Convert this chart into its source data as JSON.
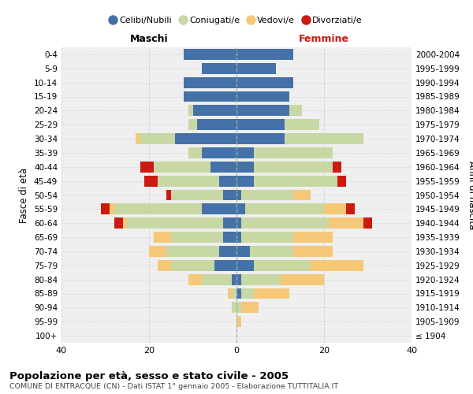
{
  "age_groups": [
    "100+",
    "95-99",
    "90-94",
    "85-89",
    "80-84",
    "75-79",
    "70-74",
    "65-69",
    "60-64",
    "55-59",
    "50-54",
    "45-49",
    "40-44",
    "35-39",
    "30-34",
    "25-29",
    "20-24",
    "15-19",
    "10-14",
    "5-9",
    "0-4"
  ],
  "birth_years": [
    "≤ 1904",
    "1905-1909",
    "1910-1914",
    "1915-1919",
    "1920-1924",
    "1925-1929",
    "1930-1934",
    "1935-1939",
    "1940-1944",
    "1945-1949",
    "1950-1954",
    "1955-1959",
    "1960-1964",
    "1965-1969",
    "1970-1974",
    "1975-1979",
    "1980-1984",
    "1985-1989",
    "1990-1994",
    "1995-1999",
    "2000-2004"
  ],
  "maschi_celibi": [
    0,
    0,
    0,
    0,
    1,
    5,
    4,
    3,
    3,
    8,
    3,
    4,
    6,
    8,
    14,
    9,
    10,
    12,
    12,
    8,
    12
  ],
  "maschi_coniugati": [
    0,
    0,
    1,
    1,
    7,
    10,
    12,
    12,
    22,
    20,
    12,
    14,
    13,
    3,
    8,
    2,
    1,
    0,
    0,
    0,
    0
  ],
  "maschi_vedovi": [
    0,
    0,
    0,
    1,
    3,
    3,
    4,
    4,
    1,
    1,
    0,
    0,
    0,
    0,
    1,
    0,
    0,
    0,
    0,
    0,
    0
  ],
  "maschi_divorziati": [
    0,
    0,
    0,
    0,
    0,
    0,
    0,
    0,
    2,
    2,
    1,
    3,
    3,
    0,
    0,
    0,
    0,
    0,
    0,
    0,
    0
  ],
  "femmine_nubili": [
    0,
    0,
    0,
    1,
    1,
    4,
    3,
    1,
    1,
    2,
    1,
    4,
    4,
    4,
    11,
    11,
    12,
    12,
    13,
    9,
    13
  ],
  "femmine_coniugate": [
    0,
    0,
    1,
    3,
    9,
    13,
    10,
    12,
    20,
    18,
    12,
    19,
    18,
    18,
    18,
    8,
    3,
    0,
    0,
    0,
    0
  ],
  "femmine_vedove": [
    0,
    1,
    4,
    8,
    10,
    12,
    9,
    9,
    8,
    5,
    4,
    0,
    0,
    0,
    0,
    0,
    0,
    0,
    0,
    0,
    0
  ],
  "femmine_divorziate": [
    0,
    0,
    0,
    0,
    0,
    0,
    0,
    0,
    2,
    2,
    0,
    2,
    2,
    0,
    0,
    0,
    0,
    0,
    0,
    0,
    0
  ],
  "col_cel": "#4472a8",
  "col_con": "#c8d8a5",
  "col_ved": "#f5c878",
  "col_div": "#cc1a10",
  "xlim": 40,
  "title": "Popolazione per età, sesso e stato civile - 2005",
  "subtitle": "COMUNE DI ENTRACQUE (CN) - Dati ISTAT 1° gennaio 2005 - Elaborazione TUTTITALIA.IT",
  "legend_labels": [
    "Celibi/Nubili",
    "Coniugati/e",
    "Vedovi/e",
    "Divorziati/e"
  ],
  "bg_color": "#efefef",
  "grid_color": "#cccccc"
}
